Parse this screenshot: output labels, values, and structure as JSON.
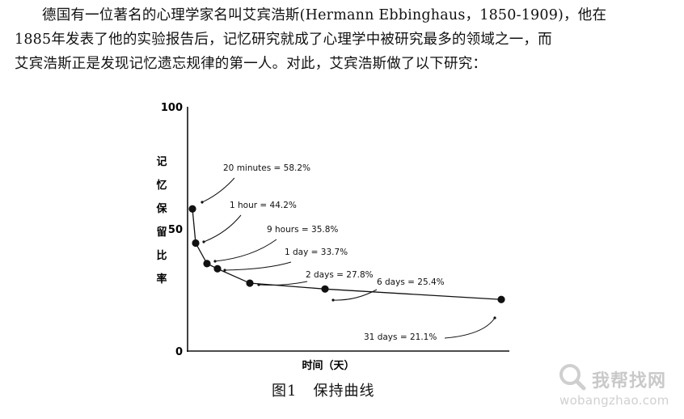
{
  "paragraph": {
    "lines": [
      "德国有一位著名的心理学家名叫艾宾浩斯(Hermann Ebbinghaus，1850-1909)，他在",
      "1885年发表了他的实验报告后，记忆研究就成了心理学中被研究最多的领域之一，而",
      "艾宾浩斯正是发现记忆遗忘规律的第一人。对此，艾宾浩斯做了以下研究："
    ]
  },
  "chart_data": {
    "type": "line",
    "ylabel": "记忆保留比率",
    "xlabel": "时间（天）",
    "ylim": [
      0,
      100
    ],
    "y_ticks": [
      "100",
      "50",
      "0"
    ],
    "grid": false,
    "legend": "none",
    "line_color": "#111111",
    "points": [
      {
        "y": 58.2,
        "label": "20 minutes = 58.2%"
      },
      {
        "y": 44.2,
        "label": "1 hour = 44.2%"
      },
      {
        "y": 35.8,
        "label": "9 hours = 35.8%"
      },
      {
        "y": 33.7,
        "label": "1 day = 33.7%"
      },
      {
        "y": 27.8,
        "label": "2 days = 27.8%"
      },
      {
        "y": 25.4,
        "label": "6 days = 25.4%"
      },
      {
        "y": 21.1,
        "label": "31 days = 21.1%"
      }
    ]
  },
  "caption": {
    "figure_no": "图1",
    "title": "保持曲线"
  },
  "watermark": {
    "title": "我帮找网",
    "url": "wobangzhao.com"
  }
}
